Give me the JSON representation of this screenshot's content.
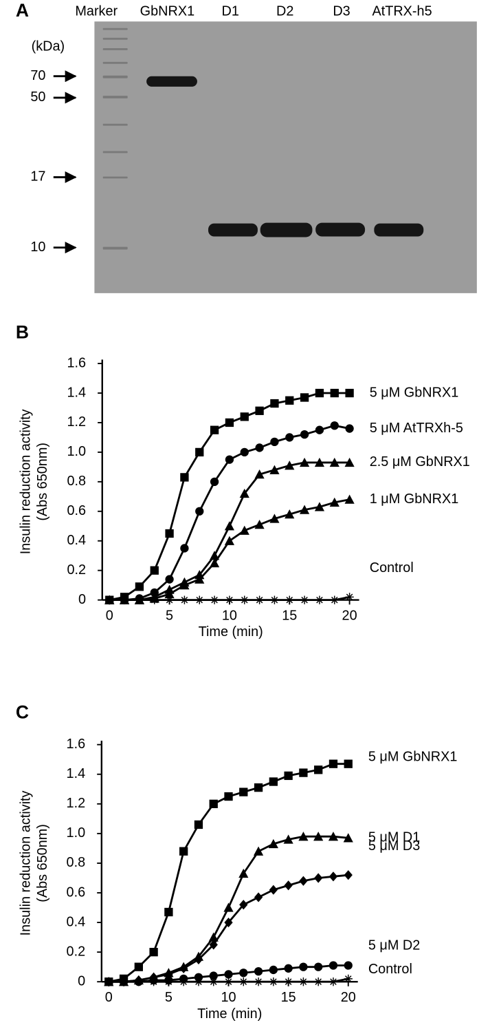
{
  "panel_a": {
    "label": "A",
    "lanes": [
      "Marker",
      "GbNRX1",
      "D1",
      "D2",
      "D3",
      "AtTRX-h5"
    ],
    "unit": "(kDa)",
    "markers": [
      "70",
      "50",
      "17",
      "10"
    ]
  },
  "chart_data": [
    {
      "type": "line",
      "label": "B",
      "xlabel": "Time (min)",
      "ylabel": [
        "Insulin reduction activity",
        "(Abs 650nm)"
      ],
      "x": [
        0,
        1.25,
        2.5,
        3.75,
        5,
        6.25,
        7.5,
        8.75,
        10,
        11.25,
        12.5,
        13.75,
        15,
        16.25,
        17.5,
        18.75,
        20
      ],
      "xlim": [
        -0.6,
        20.8
      ],
      "xticks": [
        0,
        5,
        10,
        15,
        20
      ],
      "ylim": [
        0,
        1.6
      ],
      "yticks": [
        0,
        0.2,
        0.4,
        0.6,
        0.8,
        {
          "value": 1,
          "label": "1.0"
        },
        1.2,
        1.4,
        1.6
      ],
      "series": [
        {
          "name": "5 μM GbNRX1",
          "color": "#000000",
          "marker": "square",
          "values": [
            0,
            0.02,
            0.09,
            0.2,
            0.45,
            0.83,
            1.0,
            1.15,
            1.2,
            1.24,
            1.28,
            1.33,
            1.35,
            1.37,
            1.4,
            1.4,
            1.4
          ]
        },
        {
          "name": "5 μM AtTRXh-5",
          "color": "#000000",
          "marker": "circle",
          "values": [
            0,
            0,
            0.01,
            0.05,
            0.14,
            0.35,
            0.6,
            0.8,
            0.95,
            1.0,
            1.03,
            1.07,
            1.1,
            1.12,
            1.15,
            1.18,
            1.16
          ]
        },
        {
          "name": "2.5 μM GbNRX1",
          "color": "#000000",
          "marker": "triangle",
          "values": [
            0,
            0,
            0,
            0.02,
            0.07,
            0.12,
            0.17,
            0.3,
            0.5,
            0.72,
            0.85,
            0.88,
            0.91,
            0.93,
            0.93,
            0.93,
            0.93
          ]
        },
        {
          "name": "1 μM GbNRX1",
          "color": "#000000",
          "marker": "triangle",
          "values": [
            0,
            0,
            0,
            0.01,
            0.04,
            0.1,
            0.14,
            0.25,
            0.4,
            0.47,
            0.51,
            0.55,
            0.58,
            0.61,
            0.63,
            0.66,
            0.68
          ]
        },
        {
          "name": "Control",
          "color": "#000000",
          "marker": "star",
          "values": [
            0,
            0,
            0,
            0,
            0,
            0,
            0,
            0,
            0,
            0,
            0,
            0,
            0,
            0,
            0,
            0,
            0.02
          ]
        }
      ]
    },
    {
      "type": "line",
      "label": "C",
      "xlabel": "Time (min)",
      "ylabel": [
        "Insulin reduction activity",
        "(Abs 650nm)"
      ],
      "x": [
        0,
        1.25,
        2.5,
        3.75,
        5,
        6.25,
        7.5,
        8.75,
        10,
        11.25,
        12.5,
        13.75,
        15,
        16.25,
        17.5,
        18.75,
        20
      ],
      "xlim": [
        -0.6,
        20.8
      ],
      "xticks": [
        0,
        5,
        10,
        15,
        20
      ],
      "ylim": [
        0,
        1.6
      ],
      "yticks": [
        0,
        0.2,
        0.4,
        0.6,
        0.8,
        {
          "value": 1,
          "label": "1.0"
        },
        1.2,
        1.4,
        1.6
      ],
      "series": [
        {
          "name": "5 μM GbNRX1",
          "color": "#000000",
          "marker": "square",
          "values": [
            0,
            0.02,
            0.1,
            0.2,
            0.47,
            0.88,
            1.06,
            1.2,
            1.25,
            1.28,
            1.31,
            1.35,
            1.39,
            1.41,
            1.43,
            1.47,
            1.47
          ]
        },
        {
          "name": "5 μM D1",
          "color": "#000000",
          "marker": "triangle",
          "values": [
            0,
            0,
            0.01,
            0.03,
            0.06,
            0.1,
            0.17,
            0.3,
            0.5,
            0.73,
            0.88,
            0.93,
            0.96,
            0.98,
            0.98,
            0.98,
            0.97
          ]
        },
        {
          "name": "5 μM D3",
          "color": "#000000",
          "marker": "diamond",
          "values": [
            0,
            0,
            0.01,
            0.03,
            0.05,
            0.09,
            0.15,
            0.25,
            0.4,
            0.52,
            0.57,
            0.62,
            0.65,
            0.68,
            0.7,
            0.71,
            0.72
          ]
        },
        {
          "name": "5 μM D2",
          "color": "#000000",
          "marker": "circle",
          "values": [
            0,
            0,
            0,
            0.01,
            0.01,
            0.02,
            0.03,
            0.04,
            0.05,
            0.06,
            0.07,
            0.08,
            0.09,
            0.1,
            0.1,
            0.11,
            0.11
          ]
        },
        {
          "name": "Control",
          "color": "#000000",
          "marker": "star",
          "values": [
            0,
            0,
            0,
            0,
            0,
            0,
            0,
            0,
            0,
            0,
            0,
            0,
            0,
            0,
            0,
            0,
            0.02
          ]
        }
      ]
    }
  ]
}
